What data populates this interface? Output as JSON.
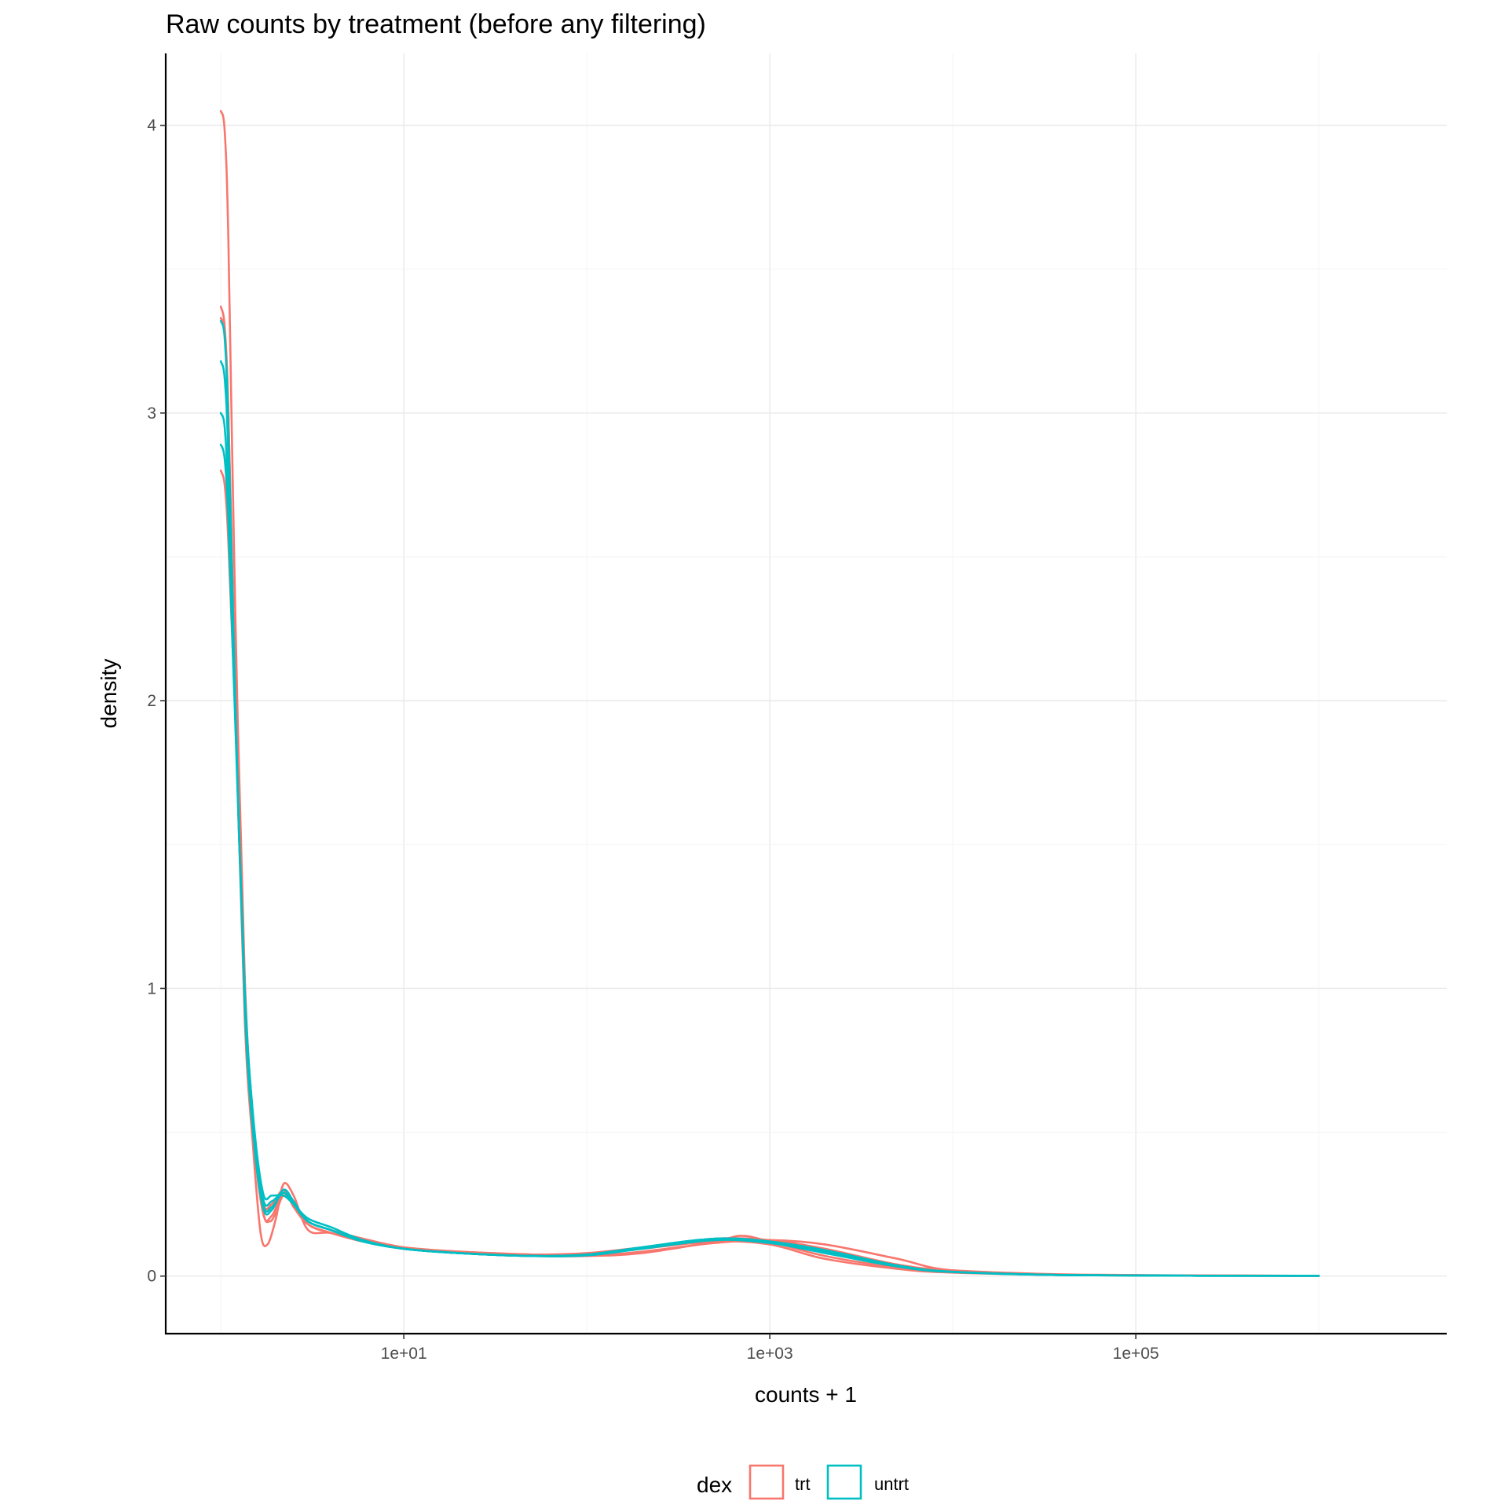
{
  "chart_data": {
    "type": "line",
    "title": "Raw counts by treatment (before any filtering)",
    "xlabel": "counts + 1",
    "ylabel": "density",
    "x_scale": "log10",
    "xlim": [
      0.5,
      5000000
    ],
    "ylim": [
      -0.2,
      4.25
    ],
    "x_ticks": [
      {
        "value": 10,
        "label": "1e+01"
      },
      {
        "value": 1000,
        "label": "1e+03"
      },
      {
        "value": 100000,
        "label": "1e+05"
      }
    ],
    "y_ticks": [
      {
        "value": 0,
        "label": "0"
      },
      {
        "value": 1,
        "label": "1"
      },
      {
        "value": 2,
        "label": "2"
      },
      {
        "value": 3,
        "label": "3"
      },
      {
        "value": 4,
        "label": "4"
      }
    ],
    "grid": true,
    "legend": {
      "title": "dex",
      "position": "bottom",
      "entries": [
        {
          "label": "trt",
          "color": "#F8766D"
        },
        {
          "label": "untrt",
          "color": "#00BFC4"
        }
      ]
    },
    "series": [
      {
        "group": "trt",
        "color": "#F8766D",
        "x": [
          1,
          1.05,
          1.1,
          1.2,
          1.35,
          1.5,
          1.7,
          1.85,
          2,
          2.2,
          2.5,
          3,
          4,
          6,
          10,
          20,
          50,
          100,
          200,
          500,
          700,
          1000,
          2000,
          5000,
          10000,
          50000,
          1000000
        ],
        "y": [
          4.05,
          3.98,
          3.6,
          2.3,
          1.05,
          0.55,
          0.23,
          0.19,
          0.22,
          0.28,
          0.25,
          0.19,
          0.16,
          0.13,
          0.1,
          0.085,
          0.075,
          0.07,
          0.08,
          0.12,
          0.14,
          0.12,
          0.07,
          0.03,
          0.015,
          0.004,
          0.001
        ]
      },
      {
        "group": "trt",
        "color": "#F8766D",
        "x": [
          1,
          1.05,
          1.1,
          1.2,
          1.35,
          1.5,
          1.65,
          1.8,
          2,
          2.2,
          2.5,
          3,
          4,
          6,
          10,
          20,
          50,
          100,
          200,
          500,
          1000,
          2000,
          5000,
          10000,
          50000,
          1000000
        ],
        "y": [
          3.37,
          3.3,
          3.0,
          2.0,
          0.9,
          0.45,
          0.15,
          0.11,
          0.2,
          0.32,
          0.28,
          0.16,
          0.15,
          0.12,
          0.1,
          0.085,
          0.075,
          0.08,
          0.1,
          0.13,
          0.125,
          0.095,
          0.04,
          0.02,
          0.005,
          0.001
        ]
      },
      {
        "group": "trt",
        "color": "#F8766D",
        "x": [
          1,
          1.05,
          1.1,
          1.2,
          1.35,
          1.5,
          1.7,
          1.9,
          2.2,
          2.5,
          3,
          4,
          6,
          10,
          20,
          50,
          100,
          200,
          500,
          1000,
          2000,
          5000,
          10000,
          50000,
          1000000
        ],
        "y": [
          2.8,
          2.75,
          2.55,
          1.95,
          1.0,
          0.55,
          0.26,
          0.25,
          0.3,
          0.24,
          0.18,
          0.15,
          0.12,
          0.095,
          0.08,
          0.07,
          0.075,
          0.095,
          0.12,
          0.11,
          0.06,
          0.025,
          0.012,
          0.003,
          0.001
        ]
      },
      {
        "group": "trt",
        "color": "#F8766D",
        "x": [
          1,
          1.05,
          1.1,
          1.2,
          1.35,
          1.5,
          1.7,
          1.9,
          2.2,
          2.5,
          3,
          4,
          6,
          10,
          20,
          50,
          100,
          200,
          500,
          1000,
          2000,
          5000,
          10000,
          50000,
          1000000
        ],
        "y": [
          3.33,
          3.28,
          3.0,
          2.05,
          0.95,
          0.5,
          0.22,
          0.21,
          0.29,
          0.26,
          0.18,
          0.15,
          0.12,
          0.095,
          0.08,
          0.07,
          0.07,
          0.085,
          0.115,
          0.125,
          0.11,
          0.06,
          0.02,
          0.004,
          0.001
        ]
      },
      {
        "group": "untrt",
        "color": "#00BFC4",
        "x": [
          1,
          1.05,
          1.1,
          1.2,
          1.35,
          1.5,
          1.7,
          1.9,
          2.2,
          2.5,
          3,
          4,
          6,
          10,
          20,
          50,
          100,
          200,
          500,
          1000,
          2000,
          5000,
          10000,
          50000,
          1000000
        ],
        "y": [
          3.32,
          3.26,
          2.95,
          2.0,
          0.95,
          0.5,
          0.24,
          0.23,
          0.3,
          0.26,
          0.19,
          0.16,
          0.12,
          0.095,
          0.08,
          0.07,
          0.075,
          0.1,
          0.13,
          0.12,
          0.085,
          0.035,
          0.015,
          0.003,
          0.001
        ]
      },
      {
        "group": "untrt",
        "color": "#00BFC4",
        "x": [
          1,
          1.05,
          1.1,
          1.2,
          1.35,
          1.5,
          1.7,
          1.9,
          2.2,
          2.5,
          3,
          4,
          6,
          10,
          20,
          50,
          100,
          200,
          500,
          1000,
          2000,
          5000,
          10000,
          50000,
          1000000
        ],
        "y": [
          3.18,
          3.12,
          2.85,
          1.98,
          0.97,
          0.52,
          0.25,
          0.24,
          0.29,
          0.25,
          0.19,
          0.16,
          0.12,
          0.095,
          0.08,
          0.07,
          0.072,
          0.095,
          0.125,
          0.115,
          0.08,
          0.033,
          0.014,
          0.003,
          0.001
        ]
      },
      {
        "group": "untrt",
        "color": "#00BFC4",
        "x": [
          1,
          1.05,
          1.1,
          1.2,
          1.35,
          1.5,
          1.7,
          1.9,
          2.2,
          2.5,
          3,
          4,
          6,
          10,
          20,
          50,
          100,
          200,
          500,
          1000,
          2000,
          5000,
          10000,
          50000,
          1000000
        ],
        "y": [
          3.0,
          2.95,
          2.7,
          1.95,
          1.0,
          0.55,
          0.27,
          0.26,
          0.29,
          0.25,
          0.19,
          0.16,
          0.12,
          0.095,
          0.08,
          0.07,
          0.073,
          0.1,
          0.13,
          0.12,
          0.09,
          0.037,
          0.015,
          0.003,
          0.001
        ]
      },
      {
        "group": "untrt",
        "color": "#00BFC4",
        "x": [
          1,
          1.05,
          1.1,
          1.2,
          1.35,
          1.5,
          1.7,
          1.9,
          2.2,
          2.5,
          3,
          4,
          6,
          10,
          20,
          50,
          100,
          200,
          500,
          1000,
          2000,
          5000,
          10000,
          50000,
          1000000
        ],
        "y": [
          2.89,
          2.84,
          2.62,
          1.92,
          1.0,
          0.56,
          0.29,
          0.28,
          0.28,
          0.25,
          0.2,
          0.17,
          0.125,
          0.095,
          0.08,
          0.07,
          0.075,
          0.1,
          0.13,
          0.12,
          0.09,
          0.036,
          0.015,
          0.003,
          0.001
        ]
      }
    ]
  }
}
